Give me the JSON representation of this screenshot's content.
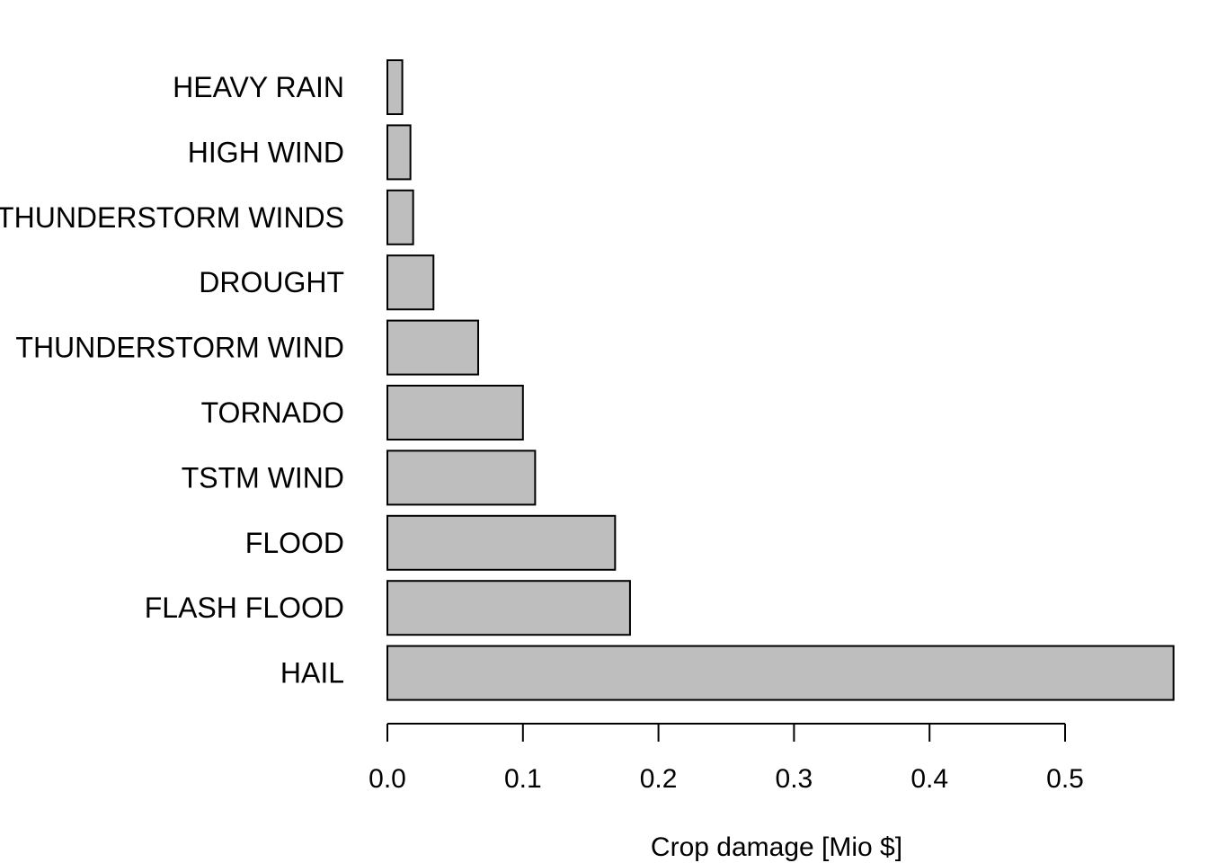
{
  "chart_data": {
    "type": "bar",
    "orientation": "horizontal",
    "categories": [
      "HEAVY RAIN",
      "HIGH WIND",
      "THUNDERSTORM WINDS",
      "DROUGHT",
      "THUNDERSTORM WIND",
      "TORNADO",
      "TSTM WIND",
      "FLOOD",
      "FLASH FLOOD",
      "HAIL"
    ],
    "values": [
      0.011,
      0.017,
      0.019,
      0.034,
      0.067,
      0.1,
      0.109,
      0.168,
      0.179,
      0.58
    ],
    "xlabel": "Crop damage [Mio $]",
    "ylabel": "",
    "xlim": [
      0,
      0.58
    ],
    "x_ticks": [
      0.0,
      0.1,
      0.2,
      0.3,
      0.4,
      0.5
    ],
    "x_tick_labels": [
      "0.0",
      "0.1",
      "0.2",
      "0.3",
      "0.4",
      "0.5"
    ],
    "grid": false,
    "bar_color": "#bebebe",
    "edge_color": "#000000"
  }
}
